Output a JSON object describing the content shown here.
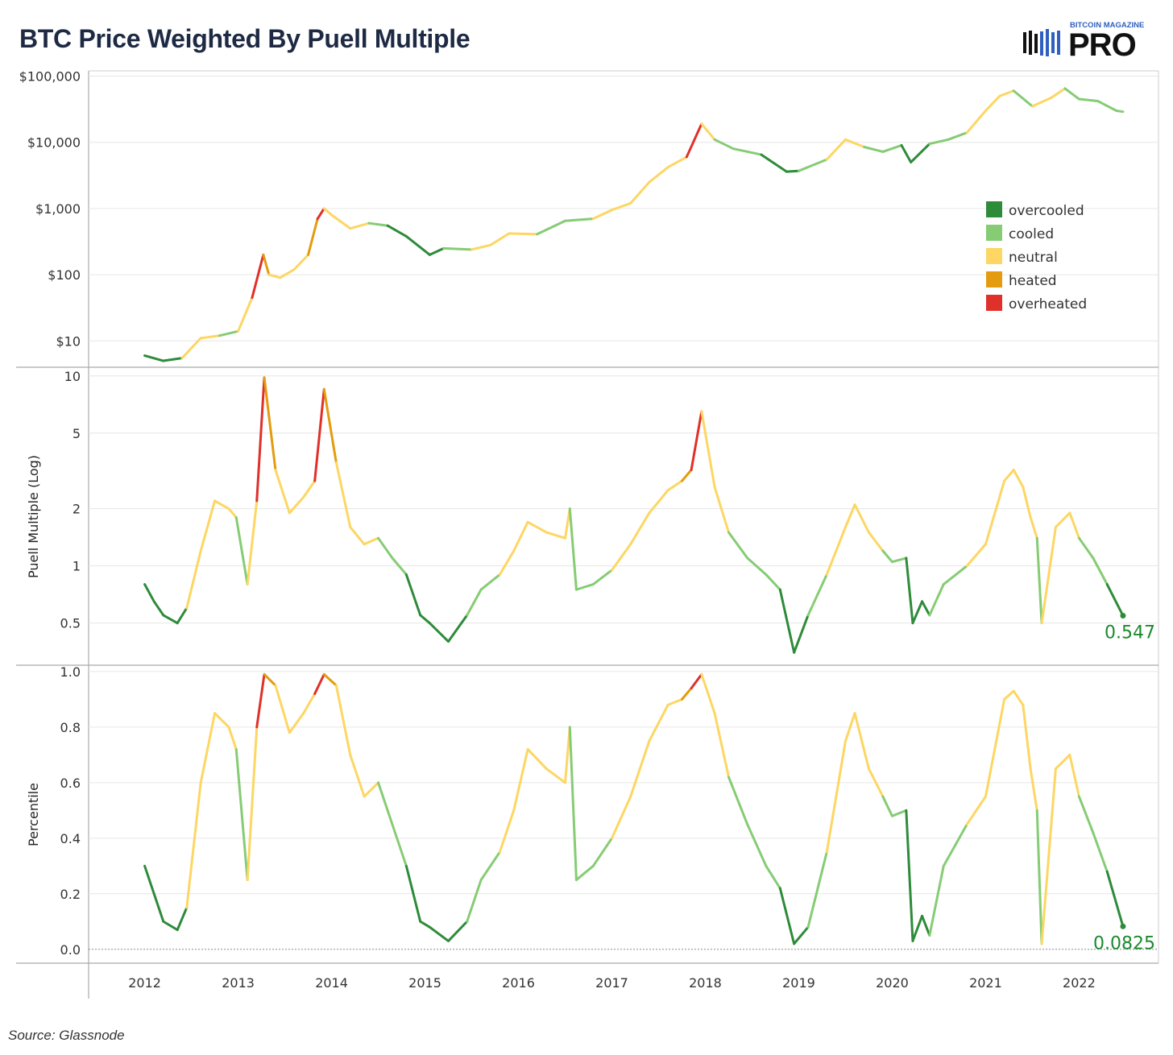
{
  "title": "BTC Price Weighted By Puell Multiple",
  "logo": {
    "top_text": "BITCOIN MAGAZINE",
    "main_text": "PRO"
  },
  "source": "Source: Glassnode",
  "colors": {
    "overcooled": "#2e8b3a",
    "cooled": "#86cc74",
    "neutral": "#fdd663",
    "heated": "#e49b0f",
    "overheated": "#e0302a"
  },
  "chart_data": [
    {
      "type": "line",
      "panel": "price",
      "ylabel": "",
      "yscale": "log",
      "ylim": [
        4,
        120000
      ],
      "yticks": [
        10,
        100,
        1000,
        10000,
        100000
      ],
      "ytick_labels": [
        "$10",
        "$100",
        "$1,000",
        "$10,000",
        "$100,000"
      ],
      "legend": {
        "position": "right",
        "entries": [
          "overcooled",
          "cooled",
          "neutral",
          "heated",
          "overheated"
        ]
      },
      "x": [
        2012.0,
        2012.2,
        2012.4,
        2012.6,
        2012.8,
        2013.0,
        2013.15,
        2013.27,
        2013.33,
        2013.45,
        2013.6,
        2013.75,
        2013.85,
        2013.92,
        2014.0,
        2014.2,
        2014.4,
        2014.6,
        2014.8,
        2015.05,
        2015.2,
        2015.5,
        2015.7,
        2015.9,
        2016.2,
        2016.5,
        2016.8,
        2017.0,
        2017.2,
        2017.4,
        2017.6,
        2017.8,
        2017.96,
        2018.1,
        2018.3,
        2018.6,
        2018.87,
        2019.0,
        2019.3,
        2019.5,
        2019.7,
        2019.9,
        2020.1,
        2020.2,
        2020.4,
        2020.6,
        2020.8,
        2021.0,
        2021.15,
        2021.3,
        2021.5,
        2021.7,
        2021.85,
        2022.0,
        2022.2,
        2022.4,
        2022.47
      ],
      "y": [
        6,
        5,
        5.5,
        11,
        12,
        14,
        45,
        200,
        100,
        90,
        120,
        200,
        700,
        1000,
        800,
        500,
        600,
        550,
        380,
        200,
        250,
        240,
        280,
        420,
        410,
        650,
        700,
        950,
        1200,
        2500,
        4200,
        6000,
        19000,
        11000,
        8000,
        6500,
        3600,
        3700,
        5500,
        11000,
        8500,
        7200,
        9000,
        5000,
        9500,
        11000,
        14000,
        30000,
        50000,
        60000,
        35000,
        47000,
        65000,
        45000,
        42000,
        30000,
        29000
      ],
      "category": [
        "cooled",
        "overcooled",
        "overcooled",
        "neutral",
        "neutral",
        "cooled",
        "neutral",
        "overheated",
        "heated",
        "neutral",
        "neutral",
        "neutral",
        "heated",
        "overheated",
        "neutral",
        "neutral",
        "neutral",
        "cooled",
        "overcooled",
        "overcooled",
        "overcooled",
        "cooled",
        "neutral",
        "neutral",
        "neutral",
        "cooled",
        "cooled",
        "neutral",
        "neutral",
        "neutral",
        "neutral",
        "neutral",
        "overheated",
        "neutral",
        "cooled",
        "cooled",
        "overcooled",
        "overcooled",
        "cooled",
        "neutral",
        "neutral",
        "cooled",
        "cooled",
        "overcooled",
        "overcooled",
        "cooled",
        "cooled",
        "neutral",
        "neutral",
        "neutral",
        "cooled",
        "neutral",
        "neutral",
        "cooled",
        "cooled",
        "cooled",
        "cooled"
      ]
    },
    {
      "type": "line",
      "panel": "puell",
      "ylabel": "Puell Multiple (Log)",
      "yscale": "log",
      "ylim": [
        0.3,
        11
      ],
      "yticks": [
        0.5,
        1,
        2,
        5,
        10
      ],
      "ytick_labels": [
        "0.5",
        "1",
        "2",
        "5",
        "10"
      ],
      "end_label": "0.547",
      "x": [
        2012.0,
        2012.1,
        2012.2,
        2012.35,
        2012.45,
        2012.6,
        2012.75,
        2012.9,
        2012.98,
        2013.1,
        2013.2,
        2013.28,
        2013.4,
        2013.55,
        2013.7,
        2013.82,
        2013.92,
        2014.05,
        2014.2,
        2014.35,
        2014.5,
        2014.65,
        2014.8,
        2014.95,
        2015.05,
        2015.25,
        2015.45,
        2015.6,
        2015.8,
        2015.95,
        2016.1,
        2016.3,
        2016.5,
        2016.55,
        2016.62,
        2016.8,
        2017.0,
        2017.2,
        2017.4,
        2017.6,
        2017.75,
        2017.85,
        2017.96,
        2018.1,
        2018.25,
        2018.45,
        2018.65,
        2018.8,
        2018.95,
        2019.1,
        2019.3,
        2019.5,
        2019.6,
        2019.75,
        2019.9,
        2020.0,
        2020.15,
        2020.22,
        2020.32,
        2020.4,
        2020.55,
        2020.8,
        2021.0,
        2021.2,
        2021.3,
        2021.4,
        2021.48,
        2021.55,
        2021.6,
        2021.75,
        2021.9,
        2022.0,
        2022.15,
        2022.3,
        2022.47
      ],
      "y": [
        0.8,
        0.65,
        0.55,
        0.5,
        0.6,
        1.2,
        2.2,
        2.0,
        1.8,
        0.8,
        2.2,
        9.8,
        3.2,
        1.9,
        2.3,
        2.8,
        8.5,
        3.5,
        1.6,
        1.3,
        1.4,
        1.1,
        0.9,
        0.55,
        0.5,
        0.4,
        0.55,
        0.75,
        0.9,
        1.2,
        1.7,
        1.5,
        1.4,
        2.0,
        0.75,
        0.8,
        0.95,
        1.3,
        1.9,
        2.5,
        2.8,
        3.2,
        6.5,
        2.6,
        1.5,
        1.1,
        0.9,
        0.75,
        0.35,
        0.55,
        0.9,
        1.6,
        2.1,
        1.5,
        1.2,
        1.05,
        1.1,
        0.5,
        0.65,
        0.55,
        0.8,
        1.0,
        1.3,
        2.8,
        3.2,
        2.6,
        1.8,
        1.4,
        0.5,
        1.6,
        1.9,
        1.4,
        1.1,
        0.8,
        0.547
      ],
      "category": [
        "cooled",
        "overcooled",
        "overcooled",
        "overcooled",
        "overcooled",
        "neutral",
        "neutral",
        "neutral",
        "neutral",
        "cooled",
        "neutral",
        "overheated",
        "heated",
        "neutral",
        "neutral",
        "neutral",
        "overheated",
        "heated",
        "neutral",
        "neutral",
        "neutral",
        "cooled",
        "cooled",
        "overcooled",
        "overcooled",
        "overcooled",
        "overcooled",
        "cooled",
        "cooled",
        "neutral",
        "neutral",
        "neutral",
        "neutral",
        "neutral",
        "cooled",
        "cooled",
        "cooled",
        "neutral",
        "neutral",
        "neutral",
        "neutral",
        "heated",
        "overheated",
        "neutral",
        "neutral",
        "cooled",
        "cooled",
        "cooled",
        "overcooled",
        "overcooled",
        "cooled",
        "neutral",
        "neutral",
        "neutral",
        "neutral",
        "cooled",
        "cooled",
        "overcooled",
        "overcooled",
        "overcooled",
        "cooled",
        "cooled",
        "neutral",
        "neutral",
        "neutral",
        "neutral",
        "neutral",
        "neutral",
        "cooled",
        "neutral",
        "neutral",
        "neutral",
        "cooled",
        "cooled",
        "overcooled"
      ]
    },
    {
      "type": "line",
      "panel": "percentile",
      "ylabel": "Percentile",
      "yscale": "linear",
      "ylim": [
        -0.05,
        1.02
      ],
      "yticks": [
        0.0,
        0.2,
        0.4,
        0.6,
        0.8,
        1.0
      ],
      "ytick_labels": [
        "0.0",
        "0.2",
        "0.4",
        "0.6",
        "0.8",
        "1.0"
      ],
      "end_label": "0.0825",
      "x": [
        2012.0,
        2012.1,
        2012.2,
        2012.35,
        2012.45,
        2012.6,
        2012.75,
        2012.9,
        2012.98,
        2013.1,
        2013.2,
        2013.28,
        2013.4,
        2013.55,
        2013.7,
        2013.82,
        2013.92,
        2014.05,
        2014.2,
        2014.35,
        2014.5,
        2014.65,
        2014.8,
        2014.95,
        2015.05,
        2015.25,
        2015.45,
        2015.6,
        2015.8,
        2015.95,
        2016.1,
        2016.3,
        2016.5,
        2016.55,
        2016.62,
        2016.8,
        2017.0,
        2017.2,
        2017.4,
        2017.6,
        2017.75,
        2017.85,
        2017.96,
        2018.1,
        2018.25,
        2018.45,
        2018.65,
        2018.8,
        2018.95,
        2019.1,
        2019.3,
        2019.5,
        2019.6,
        2019.75,
        2019.9,
        2020.0,
        2020.15,
        2020.22,
        2020.32,
        2020.4,
        2020.55,
        2020.8,
        2021.0,
        2021.2,
        2021.3,
        2021.4,
        2021.48,
        2021.55,
        2021.6,
        2021.75,
        2021.9,
        2022.0,
        2022.15,
        2022.3,
        2022.47
      ],
      "y": [
        0.3,
        0.2,
        0.1,
        0.07,
        0.15,
        0.6,
        0.85,
        0.8,
        0.72,
        0.25,
        0.8,
        0.99,
        0.95,
        0.78,
        0.85,
        0.92,
        0.99,
        0.95,
        0.7,
        0.55,
        0.6,
        0.45,
        0.3,
        0.1,
        0.08,
        0.03,
        0.1,
        0.25,
        0.35,
        0.5,
        0.72,
        0.65,
        0.6,
        0.8,
        0.25,
        0.3,
        0.4,
        0.55,
        0.75,
        0.88,
        0.9,
        0.94,
        0.99,
        0.85,
        0.62,
        0.45,
        0.3,
        0.22,
        0.02,
        0.08,
        0.35,
        0.75,
        0.85,
        0.65,
        0.55,
        0.48,
        0.5,
        0.03,
        0.12,
        0.05,
        0.3,
        0.45,
        0.55,
        0.9,
        0.93,
        0.88,
        0.65,
        0.5,
        0.02,
        0.65,
        0.7,
        0.55,
        0.42,
        0.28,
        0.0825
      ],
      "category": [
        "cooled",
        "overcooled",
        "overcooled",
        "overcooled",
        "overcooled",
        "neutral",
        "neutral",
        "neutral",
        "neutral",
        "cooled",
        "neutral",
        "overheated",
        "heated",
        "neutral",
        "neutral",
        "neutral",
        "overheated",
        "heated",
        "neutral",
        "neutral",
        "neutral",
        "cooled",
        "cooled",
        "overcooled",
        "overcooled",
        "overcooled",
        "overcooled",
        "cooled",
        "cooled",
        "neutral",
        "neutral",
        "neutral",
        "neutral",
        "neutral",
        "cooled",
        "cooled",
        "cooled",
        "neutral",
        "neutral",
        "neutral",
        "neutral",
        "heated",
        "overheated",
        "neutral",
        "neutral",
        "cooled",
        "cooled",
        "cooled",
        "overcooled",
        "overcooled",
        "cooled",
        "neutral",
        "neutral",
        "neutral",
        "neutral",
        "cooled",
        "cooled",
        "overcooled",
        "overcooled",
        "overcooled",
        "cooled",
        "cooled",
        "neutral",
        "neutral",
        "neutral",
        "neutral",
        "neutral",
        "neutral",
        "cooled",
        "neutral",
        "neutral",
        "neutral",
        "cooled",
        "cooled",
        "overcooled"
      ]
    }
  ],
  "x_axis": {
    "ticks": [
      2012,
      2013,
      2014,
      2015,
      2016,
      2017,
      2018,
      2019,
      2020,
      2021,
      2022
    ],
    "tick_labels": [
      "2012",
      "2013",
      "2014",
      "2015",
      "2016",
      "2017",
      "2018",
      "2019",
      "2020",
      "2021",
      "2022"
    ]
  }
}
